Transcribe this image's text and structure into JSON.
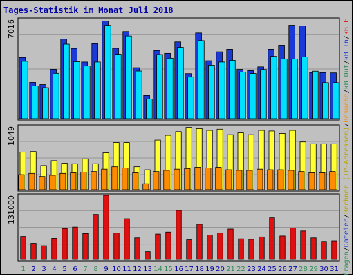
{
  "chart_data": {
    "type": "bar",
    "title": "Tages-Statistik im Monat Juli 2018",
    "categories": [
      "1",
      "2",
      "3",
      "4",
      "5",
      "6",
      "7",
      "8",
      "9",
      "10",
      "11",
      "12",
      "13",
      "14",
      "15",
      "16",
      "17",
      "18",
      "19",
      "20",
      "21",
      "22",
      "23",
      "24",
      "25",
      "26",
      "27",
      "28",
      "29",
      "30",
      "31"
    ],
    "weekend_days": [
      1,
      7,
      8,
      14,
      15,
      21,
      22,
      28,
      29
    ],
    "weekend_color": "#2e8b57",
    "weekday_color": "#0000aa",
    "panels": [
      {
        "id": "top",
        "ytick": "7016",
        "ymax": 7016,
        "series": [
          {
            "name": "Anfragen",
            "color": "#1a3ad8",
            "values": [
              4320,
              2560,
              2410,
              3490,
              5620,
              4960,
              4000,
              5290,
              6900,
              4970,
              6150,
              3600,
              1640,
              4810,
              4610,
              5420,
              3180,
              6050,
              4090,
              4720,
              4900,
              3480,
              3390,
              3660,
              4900,
              5190,
              6600,
              6550,
              3250,
              3250,
              3230
            ]
          },
          {
            "name": "Dateien",
            "color": "#00e0ff",
            "values": [
              4050,
              2310,
              2190,
              3200,
              5260,
              4020,
              3720,
              4000,
              6590,
              4550,
              5840,
              3360,
              1390,
              4530,
              4270,
              5040,
              2940,
              5510,
              3780,
              4000,
              4120,
              3290,
              3190,
              3470,
              4400,
              4220,
              4220,
              4360,
              3350,
              2540,
              2540
            ]
          }
        ],
        "series_fill": "#e0e0e0"
      },
      {
        "id": "mid",
        "ytick": "1049",
        "ymax": 1049,
        "series": [
          {
            "name": "Rechner (IP-Adressen)",
            "color": "#ffff33",
            "values": [
              620,
              630,
              400,
              480,
              440,
              430,
              510,
              430,
              610,
              780,
              780,
              380,
              330,
              820,
              900,
              960,
              1030,
              1010,
              980,
              1000,
              910,
              940,
              910,
              980,
              970,
              930,
              980,
              790,
              760,
              760,
              760
            ]
          },
          {
            "name": "Besuche",
            "color": "#ff8c00",
            "values": [
              250,
              270,
              220,
              240,
              270,
              280,
              290,
              300,
              340,
              380,
              360,
              280,
              100,
              300,
              320,
              340,
              350,
              370,
              360,
              370,
              330,
              320,
              320,
              340,
              330,
              330,
              320,
              300,
              280,
              280,
              300
            ]
          }
        ]
      },
      {
        "id": "bot",
        "ytick": "131000",
        "ymax": 131000,
        "series": [
          {
            "name": "kB F",
            "color": "#e01010",
            "values": [
              47000,
              33000,
              28000,
              43000,
              63000,
              66000,
              53000,
              92000,
              131000,
              54000,
              83000,
              44000,
              16000,
              52000,
              56000,
              100000,
              40000,
              72000,
              50000,
              54000,
              62000,
              42000,
              41000,
              46000,
              85000,
              48000,
              64000,
              58000,
              44000,
              37000,
              38000
            ]
          }
        ]
      }
    ],
    "right_legend": [
      {
        "text": "Anfragen",
        "color": "#2e8b57"
      },
      {
        "text": "/",
        "color": "#000000"
      },
      {
        "text": "Dateien",
        "color": "#1a3ad8"
      },
      {
        "text": "/",
        "color": "#000000"
      },
      {
        "text": "Rechner (IP-Adressen)",
        "color": "#b8a400"
      },
      {
        "text": "/",
        "color": "#000000"
      },
      {
        "text": "Besuche",
        "color": "#ff8c00"
      },
      {
        "text": "/",
        "color": "#000000"
      },
      {
        "text": "kB Out",
        "color": "#2e8b57"
      },
      {
        "text": "/",
        "color": "#000000"
      },
      {
        "text": "kB In",
        "color": "#1a3ad8"
      },
      {
        "text": "/",
        "color": "#000000"
      },
      {
        "text": "kB F",
        "color": "#e01010"
      }
    ],
    "colors": {
      "frame_bg": "#c0c0c0",
      "plot_bg": "#c0c0c0",
      "border": "#000000",
      "grid": "#888888"
    }
  }
}
